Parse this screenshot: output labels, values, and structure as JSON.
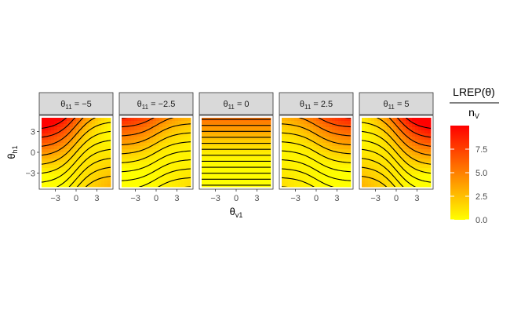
{
  "chart_data": {
    "type": "heatmap",
    "xlabel": {
      "base": "θ",
      "sub": "v1"
    },
    "ylabel": {
      "base": "θ",
      "sub": "h1"
    },
    "xlim": [
      -5,
      5
    ],
    "ylim": [
      -5,
      5
    ],
    "x_ticks": [
      -3,
      0,
      3
    ],
    "y_ticks": [
      -3,
      0,
      3
    ],
    "x_tick_labels": [
      "−3",
      "0",
      "3"
    ],
    "y_tick_labels": [
      "−3",
      "0",
      "3"
    ],
    "grid": false,
    "facets": [
      {
        "param_base": "θ",
        "param_sub": "11",
        "eq": " = ",
        "value_label": "−5",
        "value": -5
      },
      {
        "param_base": "θ",
        "param_sub": "11",
        "eq": " = ",
        "value_label": "−2.5",
        "value": -2.5
      },
      {
        "param_base": "θ",
        "param_sub": "11",
        "eq": " = ",
        "value_label": "0",
        "value": 0
      },
      {
        "param_base": "θ",
        "param_sub": "11",
        "eq": " = ",
        "value_label": "2.5",
        "value": 2.5
      },
      {
        "param_base": "θ",
        "param_sub": "11",
        "eq": " = ",
        "value_label": "5",
        "value": 5
      }
    ],
    "legend": {
      "placement": "right",
      "title_numerator": "LREP(θ)",
      "title_denominator_base": "n",
      "title_denominator_sub": "V",
      "range": [
        0,
        10
      ],
      "ticks": [
        0.0,
        2.5,
        5.0,
        7.5
      ],
      "tick_labels": [
        "0.0",
        "2.5",
        "5.0",
        "7.5"
      ],
      "colors": [
        "#FFFF00",
        "#FF8000",
        "#FF0000"
      ]
    }
  }
}
